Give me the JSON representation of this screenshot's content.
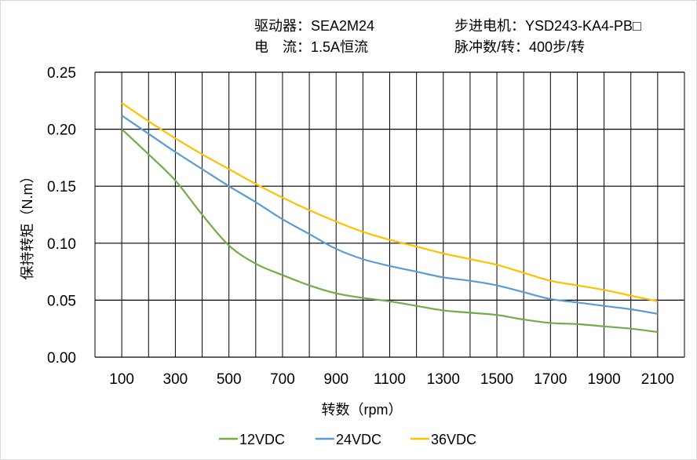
{
  "header": {
    "driver": "驱动器：SEA2M24",
    "current": "电　流：1.5A恒流",
    "motor": "步进电机：YSD243-KA4-PB□",
    "pulses": "脉冲数/转：400步/转"
  },
  "chart_data": {
    "type": "line",
    "title": "",
    "xlabel": "转数（rpm）",
    "ylabel": "保持转矩（N.m）",
    "x": [
      100,
      200,
      300,
      400,
      500,
      600,
      700,
      800,
      900,
      1000,
      1100,
      1200,
      1300,
      1400,
      1500,
      1600,
      1700,
      1800,
      1900,
      2000,
      2100
    ],
    "xticks": [
      "100",
      "300",
      "500",
      "700",
      "900",
      "1100",
      "1300",
      "1500",
      "1700",
      "1900",
      "2100"
    ],
    "xlim": [
      0,
      2200
    ],
    "ylim": [
      0,
      0.25
    ],
    "yticks": [
      "0.00",
      "0.05",
      "0.10",
      "0.15",
      "0.20",
      "0.25"
    ],
    "grid": true,
    "legend": "bottom",
    "series": [
      {
        "name": "12VDC",
        "color": "#70ad47",
        "values": [
          0.2,
          0.178,
          0.155,
          0.125,
          0.098,
          0.082,
          0.072,
          0.063,
          0.056,
          0.052,
          0.049,
          0.045,
          0.041,
          0.039,
          0.037,
          0.033,
          0.03,
          0.029,
          0.027,
          0.025,
          0.022
        ]
      },
      {
        "name": "24VDC",
        "color": "#5b9bd5",
        "values": [
          0.212,
          0.196,
          0.18,
          0.165,
          0.15,
          0.136,
          0.121,
          0.108,
          0.095,
          0.086,
          0.08,
          0.075,
          0.07,
          0.067,
          0.063,
          0.057,
          0.051,
          0.048,
          0.045,
          0.042,
          0.038
        ]
      },
      {
        "name": "36VDC",
        "color": "#ffc000",
        "values": [
          0.223,
          0.207,
          0.192,
          0.178,
          0.165,
          0.152,
          0.14,
          0.129,
          0.119,
          0.11,
          0.103,
          0.097,
          0.091,
          0.086,
          0.081,
          0.074,
          0.067,
          0.063,
          0.059,
          0.054,
          0.049
        ]
      }
    ]
  }
}
